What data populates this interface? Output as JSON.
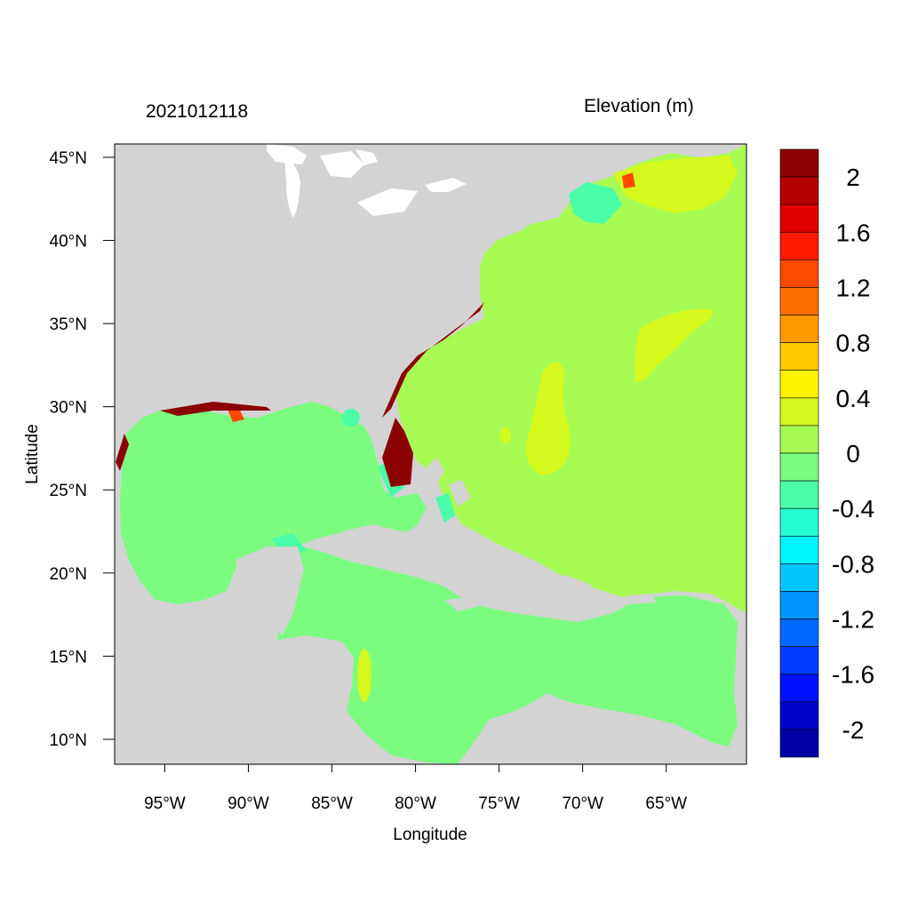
{
  "header": {
    "timestamp": "2021012118",
    "variable": "Elevation (m)"
  },
  "axes": {
    "xlabel": "Longitude",
    "ylabel": "Latitude",
    "xticks": [
      {
        "lon": -95,
        "label": "95°W"
      },
      {
        "lon": -90,
        "label": "90°W"
      },
      {
        "lon": -85,
        "label": "85°W"
      },
      {
        "lon": -80,
        "label": "80°W"
      },
      {
        "lon": -75,
        "label": "75°W"
      },
      {
        "lon": -70,
        "label": "70°W"
      },
      {
        "lon": -65,
        "label": "65°W"
      }
    ],
    "yticks": [
      {
        "lat": 45,
        "label": "45°N"
      },
      {
        "lat": 40,
        "label": "40°N"
      },
      {
        "lat": 35,
        "label": "35°N"
      },
      {
        "lat": 30,
        "label": "30°N"
      },
      {
        "lat": 25,
        "label": "25°N"
      },
      {
        "lat": 20,
        "label": "20°N"
      },
      {
        "lat": 15,
        "label": "15°N"
      },
      {
        "lat": 10,
        "label": "10°N"
      }
    ],
    "lon_range": [
      -98,
      -60.2
    ],
    "lat_range": [
      8.5,
      45.8
    ]
  },
  "colorbar": {
    "colors": [
      "#8b0000",
      "#b30000",
      "#e00000",
      "#ff1a00",
      "#ff4800",
      "#ff6e00",
      "#ff9900",
      "#ffc800",
      "#fff500",
      "#d5f91d",
      "#a8fb52",
      "#7cfd80",
      "#4afea8",
      "#22fdd4",
      "#00f5ff",
      "#00c8ff",
      "#0096ff",
      "#0068ff",
      "#003cff",
      "#0010ff",
      "#0000cc",
      "#0000a8"
    ],
    "labels": [
      "2",
      "1.6",
      "1.2",
      "0.8",
      "0.4",
      "0",
      "-0.4",
      "-0.8",
      "-1.2",
      "-1.6",
      "-2"
    ]
  },
  "map_colors": {
    "land": "#d3d3d3",
    "lakes": "#ffffff",
    "gulf_caribbean": "#7cfd80",
    "atlantic": "#a8fb52",
    "positive_anomaly": "#d5f91d",
    "negative_anomaly": "#4afea8",
    "surge_high": "#8b0000",
    "surge_mid": "#ff4800"
  }
}
